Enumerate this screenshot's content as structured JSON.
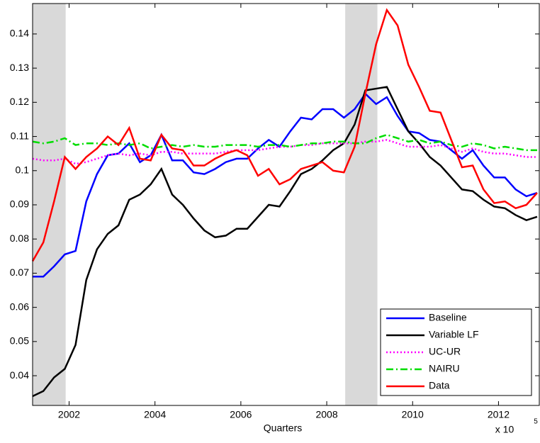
{
  "chart_data": {
    "type": "line",
    "x_label": "Quarters",
    "x_multiplier": {
      "base": "x 10",
      "exponent": "5"
    },
    "x": [
      2001.15,
      2001.4,
      2001.65,
      2001.9,
      2002.15,
      2002.4,
      2002.65,
      2002.9,
      2003.15,
      2003.4,
      2003.65,
      2003.9,
      2004.15,
      2004.4,
      2004.65,
      2004.9,
      2005.15,
      2005.4,
      2005.65,
      2005.9,
      2006.15,
      2006.4,
      2006.65,
      2006.9,
      2007.15,
      2007.4,
      2007.65,
      2007.9,
      2008.15,
      2008.4,
      2008.65,
      2008.9,
      2009.15,
      2009.4,
      2009.65,
      2009.9,
      2010.15,
      2010.4,
      2010.65,
      2010.9,
      2011.15,
      2011.4,
      2011.65,
      2011.9,
      2012.15,
      2012.4,
      2012.65,
      2012.9
    ],
    "series": [
      {
        "name": "Baseline",
        "color": "#0000ff",
        "line_style": "solid",
        "values": [
          0.069,
          0.069,
          0.072,
          0.0755,
          0.0765,
          0.091,
          0.099,
          0.1045,
          0.105,
          0.108,
          0.1025,
          0.1045,
          0.1105,
          0.103,
          0.103,
          0.0995,
          0.099,
          0.1005,
          0.1025,
          0.1035,
          0.1035,
          0.1065,
          0.109,
          0.107,
          0.1115,
          0.1155,
          0.115,
          0.118,
          0.118,
          0.1155,
          0.118,
          0.1225,
          0.1195,
          0.1215,
          0.116,
          0.1115,
          0.111,
          0.109,
          0.1085,
          0.106,
          0.1035,
          0.106,
          0.1015,
          0.098,
          0.098,
          0.0945,
          0.0925,
          0.0935
        ]
      },
      {
        "name": "Variable LF",
        "color": "#000000",
        "line_style": "solid",
        "values": [
          0.034,
          0.0355,
          0.0395,
          0.042,
          0.049,
          0.068,
          0.077,
          0.0815,
          0.084,
          0.0915,
          0.093,
          0.096,
          0.1005,
          0.093,
          0.09,
          0.086,
          0.0825,
          0.0805,
          0.081,
          0.083,
          0.083,
          0.0865,
          0.09,
          0.0895,
          0.094,
          0.099,
          0.1005,
          0.103,
          0.106,
          0.108,
          0.1135,
          0.1235,
          0.124,
          0.1245,
          0.118,
          0.1115,
          0.108,
          0.104,
          0.1015,
          0.098,
          0.0945,
          0.094,
          0.0915,
          0.0895,
          0.089,
          0.087,
          0.0855,
          0.0865
        ]
      },
      {
        "name": "UC-UR",
        "color": "#ff00ff",
        "line_style": "dotted",
        "values": [
          0.1035,
          0.103,
          0.103,
          0.1035,
          0.102,
          0.1025,
          0.1035,
          0.1045,
          0.105,
          0.1045,
          0.105,
          0.1045,
          0.1055,
          0.1055,
          0.105,
          0.105,
          0.105,
          0.105,
          0.1055,
          0.106,
          0.106,
          0.106,
          0.1065,
          0.107,
          0.107,
          0.1075,
          0.1075,
          0.108,
          0.108,
          0.108,
          0.108,
          0.1085,
          0.1085,
          0.109,
          0.108,
          0.107,
          0.107,
          0.107,
          0.1075,
          0.1065,
          0.1055,
          0.1065,
          0.1055,
          0.105,
          0.105,
          0.1045,
          0.104,
          0.104
        ]
      },
      {
        "name": "NAIRU",
        "color": "#00dd00",
        "line_style": "dashdot",
        "values": [
          0.1085,
          0.108,
          0.1085,
          0.1095,
          0.1075,
          0.108,
          0.108,
          0.1075,
          0.108,
          0.1075,
          0.108,
          0.1065,
          0.107,
          0.1075,
          0.107,
          0.1075,
          0.107,
          0.107,
          0.1075,
          0.1075,
          0.1075,
          0.107,
          0.1075,
          0.1075,
          0.107,
          0.1075,
          0.108,
          0.108,
          0.1085,
          0.1085,
          0.108,
          0.108,
          0.1095,
          0.1105,
          0.1095,
          0.1085,
          0.109,
          0.108,
          0.1085,
          0.1075,
          0.107,
          0.108,
          0.1075,
          0.1065,
          0.107,
          0.1065,
          0.106,
          0.106
        ]
      },
      {
        "name": "Data",
        "color": "#ff0000",
        "line_style": "solid",
        "values": [
          0.0735,
          0.079,
          0.091,
          0.104,
          0.1005,
          0.104,
          0.1065,
          0.11,
          0.1075,
          0.1125,
          0.1035,
          0.103,
          0.1105,
          0.1065,
          0.106,
          0.1015,
          0.1015,
          0.1035,
          0.105,
          0.106,
          0.1045,
          0.0985,
          0.1005,
          0.096,
          0.0975,
          0.1005,
          0.1015,
          0.1025,
          0.1,
          0.0995,
          0.107,
          0.1225,
          0.137,
          0.147,
          0.1425,
          0.131,
          0.1245,
          0.1175,
          0.117,
          0.109,
          0.101,
          0.1015,
          0.0945,
          0.0905,
          0.091,
          0.089,
          0.09,
          0.0935
        ]
      }
    ],
    "shaded_regions": [
      [
        2001.15,
        2001.92
      ],
      [
        2008.43,
        2009.18
      ]
    ],
    "shade_color": "#d9d9d9",
    "xlim": [
      2001.15,
      2012.95
    ],
    "ylim": [
      0.0313,
      0.1489
    ],
    "xticks": [
      2002,
      2004,
      2006,
      2008,
      2010,
      2012
    ],
    "yticks": [
      0.04,
      0.05,
      0.06,
      0.07,
      0.08,
      0.09,
      0.1,
      0.11,
      0.12,
      0.13,
      0.14
    ],
    "legend_position": "lower right",
    "grid": false
  }
}
